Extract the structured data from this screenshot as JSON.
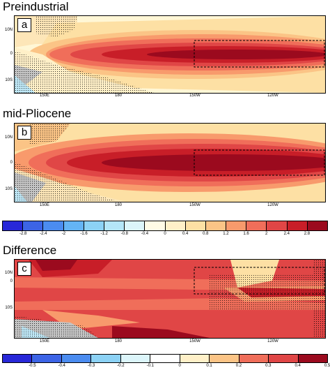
{
  "panels": [
    {
      "title": "Preindustrial",
      "letter": "a"
    },
    {
      "title": "mid-Pliocene",
      "letter": "b"
    },
    {
      "title": "Difference",
      "letter": "c"
    }
  ],
  "axes": {
    "y_ticks": [
      "10N",
      "0",
      "10S"
    ],
    "x_ticks": [
      "150E",
      "180",
      "150W",
      "120W"
    ]
  },
  "colorbar_top": {
    "labels": [
      "-2.8",
      "-2.4",
      "-2",
      "-1.6",
      "-1.2",
      "-0.8",
      "-0.4",
      "0",
      "0.4",
      "0.8",
      "1.2",
      "1.6",
      "2",
      "2.4",
      "2.8"
    ],
    "colors": [
      "#2828d8",
      "#3c64e6",
      "#4b8cf0",
      "#64b4f5",
      "#8cd2f5",
      "#b4e6f8",
      "#dcf5fa",
      "#fffbe6",
      "#fff0c8",
      "#fde0a4",
      "#fbc486",
      "#f89a6c",
      "#f06e5a",
      "#e04646",
      "#c81e28",
      "#9b0a1e"
    ]
  },
  "colorbar_bottom": {
    "labels": [
      "-0.5",
      "-0.4",
      "-0.3",
      "-0.2",
      "-0.1",
      "0",
      "0.1",
      "0.2",
      "0.3",
      "0.4",
      "0.5"
    ],
    "colors": [
      "#2828d8",
      "#3c64e6",
      "#4b8cf0",
      "#8cd2f5",
      "#dcf5fa",
      "#ffffff",
      "#fff0c8",
      "#fbc486",
      "#f06e5a",
      "#e04646",
      "#9b0a1e"
    ]
  }
}
